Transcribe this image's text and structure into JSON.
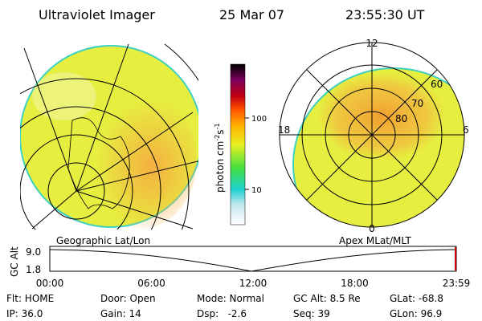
{
  "header": {
    "title": "Ultraviolet Imager",
    "date": "25 Mar 07",
    "time": "23:55:30 UT"
  },
  "colorbar": {
    "unit": "photon cm",
    "exp1": "-2",
    "unit2": "s",
    "exp2": "-1",
    "ticks": [
      "100",
      "10"
    ]
  },
  "polar": {
    "mlt": [
      "12",
      "18",
      "6",
      "0"
    ],
    "mlat": [
      "60",
      "70",
      "80"
    ]
  },
  "captions": {
    "left": "Geographic Lat/Lon",
    "right": "Apex MLat/MLT"
  },
  "altitude": {
    "label": "GC Alt",
    "yticks": [
      "9.0",
      "1.8"
    ],
    "xticks": [
      "00:00",
      "06:00",
      "12:00",
      "18:00",
      "23:59"
    ]
  },
  "info": [
    [
      "Flt: HOME",
      "Door: Open",
      "Mode: Normal",
      "GC Alt: 8.5 Re",
      "GLat: -68.8"
    ],
    [
      "IP: 36.0",
      "Gain: 14",
      "Dsp:   -2.6",
      "Seq: 39",
      "GLon: 96.9"
    ]
  ]
}
